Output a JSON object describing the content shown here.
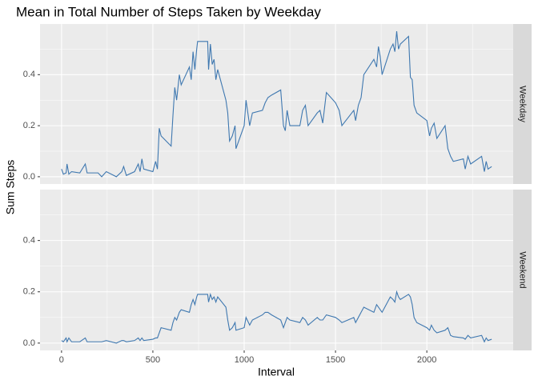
{
  "chart_data": {
    "type": "line",
    "title": "Mean in Total Number of Steps Taken by Weekday",
    "x_label": "Interval",
    "y_label": "Sum Steps",
    "color": "#3f78b0",
    "grid": true,
    "xlim": [
      -117.75,
      2472.75
    ],
    "xticks": [
      0,
      500,
      1000,
      1500,
      2000
    ],
    "xminor": [
      250,
      750,
      1250,
      1750,
      2250
    ],
    "ylim": [
      -0.0285,
      0.5985
    ],
    "yticks": [
      {
        "value": 0,
        "label": "0.0"
      },
      0.2,
      0.4
    ],
    "yminor": [
      0.1,
      0.3,
      0.5
    ],
    "x": [
      0,
      10,
      25,
      30,
      40,
      55,
      100,
      130,
      140,
      200,
      220,
      245,
      300,
      330,
      340,
      355,
      400,
      420,
      430,
      440,
      450,
      500,
      515,
      525,
      535,
      545,
      600,
      610,
      620,
      630,
      645,
      655,
      700,
      710,
      720,
      730,
      740,
      745,
      800,
      805,
      815,
      825,
      835,
      845,
      855,
      900,
      910,
      920,
      935,
      950,
      955,
      1000,
      1010,
      1030,
      1045,
      1100,
      1115,
      1130,
      1150,
      1200,
      1215,
      1225,
      1235,
      1250,
      1305,
      1320,
      1335,
      1350,
      1400,
      1415,
      1430,
      1450,
      1500,
      1520,
      1535,
      1600,
      1610,
      1625,
      1640,
      1655,
      1710,
      1725,
      1735,
      1745,
      1755,
      1800,
      1815,
      1825,
      1835,
      1845,
      1855,
      1900,
      1910,
      1920,
      1930,
      1945,
      2000,
      2015,
      2025,
      2040,
      2055,
      2100,
      2115,
      2130,
      2145,
      2200,
      2210,
      2225,
      2240,
      2300,
      2315,
      2325,
      2335,
      2355
    ],
    "facets": [
      {
        "name": "Weekday",
        "values": [
          0.03,
          0.01,
          0.015,
          0.05,
          0.01,
          0.02,
          0.015,
          0.05,
          0.015,
          0.015,
          0.0,
          0.02,
          0.0,
          0.02,
          0.04,
          0.005,
          0.02,
          0.05,
          0.02,
          0.07,
          0.03,
          0.02,
          0.06,
          0.03,
          0.19,
          0.16,
          0.12,
          0.24,
          0.35,
          0.3,
          0.4,
          0.36,
          0.43,
          0.38,
          0.49,
          0.42,
          0.5,
          0.53,
          0.53,
          0.42,
          0.52,
          0.44,
          0.46,
          0.38,
          0.42,
          0.3,
          0.25,
          0.14,
          0.16,
          0.2,
          0.11,
          0.2,
          0.3,
          0.2,
          0.25,
          0.26,
          0.29,
          0.31,
          0.32,
          0.34,
          0.2,
          0.18,
          0.26,
          0.2,
          0.2,
          0.26,
          0.28,
          0.2,
          0.25,
          0.26,
          0.21,
          0.33,
          0.29,
          0.26,
          0.2,
          0.26,
          0.22,
          0.28,
          0.31,
          0.4,
          0.46,
          0.43,
          0.51,
          0.47,
          0.4,
          0.5,
          0.52,
          0.49,
          0.57,
          0.5,
          0.52,
          0.55,
          0.39,
          0.38,
          0.28,
          0.25,
          0.22,
          0.16,
          0.19,
          0.21,
          0.15,
          0.2,
          0.11,
          0.08,
          0.06,
          0.07,
          0.03,
          0.08,
          0.05,
          0.08,
          0.02,
          0.06,
          0.03,
          0.04
        ]
      },
      {
        "name": "Weekend",
        "values": [
          0.01,
          0.005,
          0.02,
          0.005,
          0.02,
          0.005,
          0.005,
          0.02,
          0.005,
          0.005,
          0.005,
          0.01,
          0.0,
          0.01,
          0.01,
          0.005,
          0.01,
          0.02,
          0.01,
          0.02,
          0.01,
          0.015,
          0.02,
          0.02,
          0.04,
          0.06,
          0.05,
          0.08,
          0.1,
          0.09,
          0.12,
          0.13,
          0.12,
          0.15,
          0.17,
          0.15,
          0.18,
          0.19,
          0.19,
          0.16,
          0.19,
          0.17,
          0.18,
          0.16,
          0.18,
          0.14,
          0.09,
          0.05,
          0.06,
          0.08,
          0.05,
          0.06,
          0.1,
          0.07,
          0.09,
          0.11,
          0.12,
          0.12,
          0.11,
          0.09,
          0.06,
          0.08,
          0.1,
          0.09,
          0.08,
          0.1,
          0.09,
          0.07,
          0.1,
          0.09,
          0.09,
          0.11,
          0.1,
          0.09,
          0.08,
          0.1,
          0.08,
          0.1,
          0.12,
          0.14,
          0.12,
          0.15,
          0.14,
          0.13,
          0.12,
          0.18,
          0.17,
          0.16,
          0.2,
          0.18,
          0.17,
          0.19,
          0.18,
          0.15,
          0.1,
          0.08,
          0.06,
          0.05,
          0.07,
          0.05,
          0.04,
          0.05,
          0.06,
          0.03,
          0.025,
          0.02,
          0.015,
          0.03,
          0.02,
          0.03,
          0.005,
          0.02,
          0.01,
          0.015
        ]
      }
    ]
  }
}
